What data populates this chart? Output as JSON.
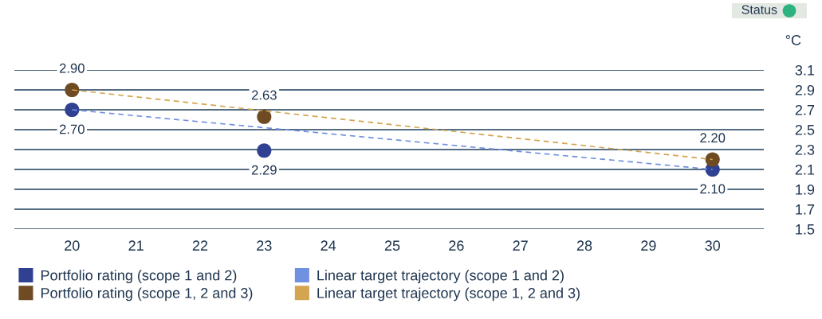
{
  "chart_data": {
    "type": "scatter",
    "ylabel": "°C",
    "x": [
      20,
      23,
      30
    ],
    "series": [
      {
        "name": "Portfolio rating (scope 1 and 2)",
        "color": "#2f4190",
        "values": [
          2.7,
          2.29,
          2.1
        ],
        "value_labels": [
          "2.70",
          "2.29",
          "2.10"
        ],
        "marker": "circle"
      },
      {
        "name": "Portfolio rating (scope 1, 2 and 3)",
        "color": "#6e4b22",
        "values": [
          2.9,
          2.63,
          2.2
        ],
        "value_labels": [
          "2.90",
          "2.63",
          "2.20"
        ],
        "marker": "circle"
      },
      {
        "name": "Linear target trajectory (scope 1 and 2)",
        "type": "line",
        "color": "#7090e0",
        "values": [
          2.7,
          null,
          2.1
        ],
        "line_style": "dashed",
        "marker": "none"
      },
      {
        "name": "Linear target trajectory (scope 1, 2 and 3)",
        "type": "line",
        "color": "#d4a450",
        "values": [
          2.9,
          null,
          2.2
        ],
        "line_style": "dashed",
        "marker": "none"
      }
    ],
    "xlim": [
      19.1,
      30.8
    ],
    "xticks": [
      20,
      21,
      22,
      23,
      24,
      25,
      26,
      27,
      28,
      29,
      30
    ],
    "ylim": [
      1.5,
      3.1
    ],
    "yticks": [
      {
        "value": 1.5,
        "label": "1.5"
      },
      {
        "value": 1.7,
        "label": "1.7"
      },
      {
        "value": 1.9,
        "label": "1.9"
      },
      {
        "value": 2.1,
        "label": "2.1"
      },
      {
        "value": 2.3,
        "label": "2.3"
      },
      {
        "value": 2.5,
        "label": "2.5"
      },
      {
        "value": 2.7,
        "label": "2.7"
      },
      {
        "value": 2.9,
        "label": "2.9"
      },
      {
        "value": 3.1,
        "label": "3.1"
      }
    ],
    "grid": "y",
    "legend": "bottom left",
    "annotations": [
      "Status"
    ]
  }
}
